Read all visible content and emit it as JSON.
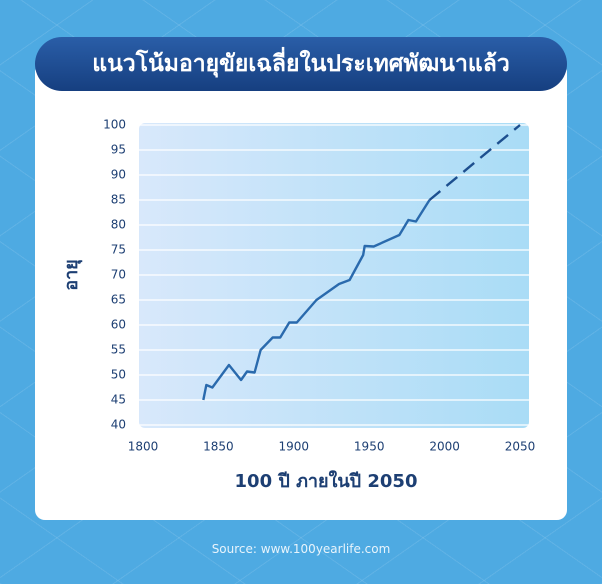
{
  "chart_data": {
    "type": "line",
    "title": "แนวโน้มอายุขัยเฉลี่ยในประเทศพัฒนาแล้ว",
    "x_label": "100 ปี ภายในปี 2050",
    "y_label": "อายุ",
    "source": "Source: www.100yearlife.com",
    "x": [
      1840,
      1842,
      1846,
      1857,
      1865,
      1869,
      1874,
      1878,
      1886,
      1891,
      1897,
      1902,
      1915,
      1930,
      1937,
      1946,
      1947,
      1953,
      1970,
      1976,
      1981,
      1990,
      2050
    ],
    "series": [
      {
        "color": "#2a6aad",
        "dashed": false,
        "values": [
          45,
          48,
          47.5,
          52,
          49,
          50.7,
          50.5,
          55,
          57.5,
          57.5,
          60.5,
          60.5,
          65,
          68.2,
          69,
          74,
          75.8,
          75.7,
          78,
          81,
          80.7,
          85,
          null
        ]
      },
      {
        "color": "#1d4f8f",
        "dashed": true,
        "values": [
          null,
          null,
          null,
          null,
          null,
          null,
          null,
          null,
          null,
          null,
          null,
          null,
          null,
          null,
          null,
          null,
          null,
          null,
          null,
          null,
          null,
          85,
          100
        ]
      }
    ],
    "xlim": [
      1800,
      2050
    ],
    "xticks": [
      1800,
      1850,
      1900,
      1950,
      2000,
      2050
    ],
    "ylim": [
      40,
      100
    ],
    "yticks": [
      40,
      45,
      50,
      55,
      60,
      65,
      70,
      75,
      80,
      85,
      90,
      95,
      100
    ],
    "grid": true
  }
}
